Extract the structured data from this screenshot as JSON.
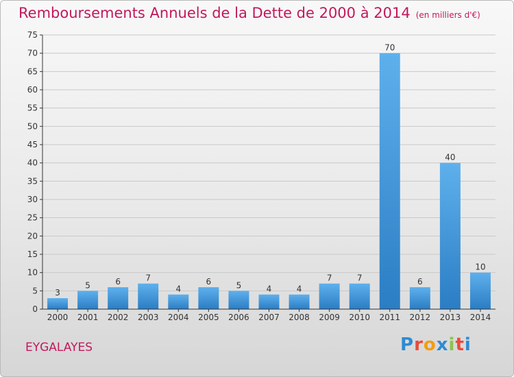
{
  "header": {
    "title": "Remboursements Annuels de la Dette de 2000 à 2014",
    "unit": "(en milliers d'€)"
  },
  "commune": "EYGALAYES",
  "logo": {
    "text": "Proxiti",
    "colors": [
      "#2e8bd3",
      "#e84b3c",
      "#f39c12",
      "#2e8bd3",
      "#8bc34a",
      "#e84b3c",
      "#2e8bd3"
    ]
  },
  "colors": {
    "title": "#c2185b",
    "bar_top": "#5eb0ec",
    "bar_bottom": "#2b7dc4"
  },
  "chart_data": {
    "type": "bar",
    "categories": [
      "2000",
      "2001",
      "2002",
      "2003",
      "2004",
      "2005",
      "2006",
      "2007",
      "2008",
      "2009",
      "2010",
      "2011",
      "2012",
      "2013",
      "2014"
    ],
    "values": [
      3,
      5,
      6,
      7,
      4,
      6,
      5,
      4,
      4,
      7,
      7,
      70,
      6,
      40,
      10
    ],
    "yticks": [
      0,
      5,
      10,
      15,
      20,
      25,
      30,
      35,
      40,
      45,
      50,
      55,
      60,
      65,
      70,
      75
    ],
    "ylim": [
      0,
      75
    ],
    "grid": true
  }
}
